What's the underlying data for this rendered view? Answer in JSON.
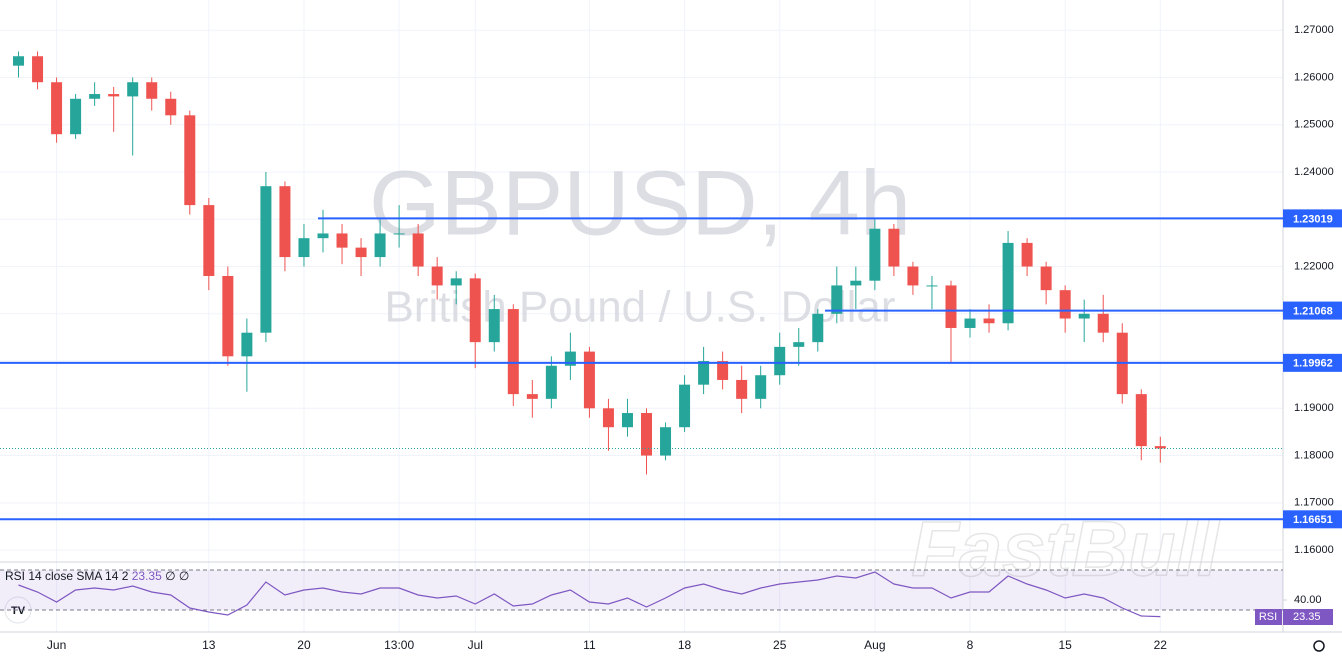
{
  "chart_data": {
    "type": "candlestick",
    "title": "GBPUSD, 4h",
    "subtitle": "British Pound / U.S. Dollar",
    "watermark": "FastBull",
    "categories": [
      null,
      null,
      "Jun",
      null,
      null,
      null,
      null,
      null,
      null,
      null,
      "13",
      null,
      null,
      null,
      null,
      "20",
      null,
      null,
      null,
      null,
      "13:00",
      null,
      null,
      null,
      "Jul",
      null,
      null,
      null,
      null,
      null,
      "11",
      null,
      null,
      null,
      null,
      "18",
      null,
      null,
      null,
      null,
      "25",
      null,
      null,
      null,
      null,
      "Aug",
      null,
      null,
      null,
      null,
      "8",
      null,
      null,
      null,
      null,
      "15",
      null,
      null,
      null,
      null,
      "22"
    ],
    "open": [
      1.2625,
      1.2645,
      1.259,
      1.248,
      1.2555,
      1.2565,
      1.256,
      1.259,
      1.2555,
      1.252,
      1.233,
      1.218,
      1.201,
      1.206,
      1.237,
      1.222,
      1.226,
      1.227,
      1.224,
      1.222,
      1.227,
      1.227,
      1.22,
      1.216,
      1.2175,
      1.204,
      1.211,
      1.193,
      1.192,
      1.199,
      1.202,
      1.19,
      1.186,
      1.189,
      1.18,
      1.186,
      1.195,
      1.2,
      1.196,
      1.192,
      1.197,
      1.203,
      1.204,
      1.21,
      1.216,
      1.217,
      1.228,
      1.22,
      1.216,
      1.216,
      1.207,
      1.209,
      1.208,
      1.225,
      1.22,
      1.215,
      1.209,
      1.21,
      1.206,
      1.193,
      1.182
    ],
    "high": [
      1.2655,
      1.2655,
      1.26,
      1.2565,
      1.259,
      1.258,
      1.26,
      1.26,
      1.257,
      1.253,
      1.2345,
      1.22,
      1.209,
      1.24,
      1.238,
      1.229,
      1.232,
      1.229,
      1.226,
      1.23,
      1.233,
      1.229,
      1.222,
      1.219,
      1.2185,
      1.214,
      1.212,
      1.196,
      1.201,
      1.206,
      1.203,
      1.192,
      1.192,
      1.19,
      1.187,
      1.197,
      1.203,
      1.202,
      1.199,
      1.199,
      1.206,
      1.207,
      1.211,
      1.22,
      1.22,
      1.23,
      1.229,
      1.221,
      1.218,
      1.217,
      1.211,
      1.212,
      1.2275,
      1.226,
      1.221,
      1.216,
      1.213,
      1.214,
      1.208,
      1.194,
      1.184
    ],
    "low": [
      1.26,
      1.2575,
      1.2462,
      1.247,
      1.254,
      1.2485,
      1.2435,
      1.253,
      1.25,
      1.231,
      1.215,
      1.199,
      1.1935,
      1.204,
      1.219,
      1.22,
      1.223,
      1.2205,
      1.218,
      1.22,
      1.224,
      1.218,
      1.213,
      1.212,
      1.1985,
      1.202,
      1.1905,
      1.188,
      1.19,
      1.196,
      1.188,
      1.181,
      1.184,
      1.176,
      1.179,
      1.185,
      1.193,
      1.194,
      1.189,
      1.19,
      1.195,
      1.199,
      1.202,
      1.208,
      1.211,
      1.215,
      1.218,
      1.214,
      1.211,
      1.1995,
      1.205,
      1.206,
      1.2065,
      1.218,
      1.212,
      1.206,
      1.204,
      1.204,
      1.191,
      1.179,
      1.1785
    ],
    "close": [
      1.2645,
      1.259,
      1.248,
      1.2555,
      1.2565,
      1.256,
      1.259,
      1.2555,
      1.252,
      1.233,
      1.218,
      1.201,
      1.206,
      1.237,
      1.222,
      1.226,
      1.227,
      1.224,
      1.222,
      1.227,
      1.227,
      1.22,
      1.216,
      1.2175,
      1.204,
      1.211,
      1.193,
      1.192,
      1.199,
      1.202,
      1.19,
      1.186,
      1.189,
      1.18,
      1.186,
      1.195,
      1.2,
      1.196,
      1.192,
      1.197,
      1.203,
      1.204,
      1.21,
      1.216,
      1.217,
      1.228,
      1.22,
      1.216,
      1.216,
      1.207,
      1.209,
      1.208,
      1.225,
      1.22,
      1.215,
      1.209,
      1.21,
      1.206,
      1.193,
      1.182,
      1.1815
    ],
    "up_color": "#26a69a",
    "down_color": "#ef5350",
    "ylim": [
      1.1579,
      1.2764
    ],
    "yticks": [
      {
        "value": 1.27,
        "label": "1.27000"
      },
      {
        "value": 1.26,
        "label": "1.26000"
      },
      {
        "value": 1.25,
        "label": "1.25000"
      },
      {
        "value": 1.24,
        "label": "1.24000"
      },
      {
        "value": 1.23,
        "label": "1.23000"
      },
      {
        "value": 1.22,
        "label": "1.22000"
      },
      {
        "value": 1.21,
        "label": "1.21000"
      },
      {
        "value": 1.2,
        "label": "1.20000"
      },
      {
        "value": 1.19,
        "label": "1.19000"
      },
      {
        "value": 1.18,
        "label": "1.18000"
      },
      {
        "value": 1.17,
        "label": "1.17000"
      },
      {
        "value": 1.16,
        "label": "1.16000"
      }
    ],
    "grid": true,
    "levels": [
      1.23019,
      1.21068,
      1.19962,
      1.16651
    ],
    "level_color": "#2962ff",
    "indicator": {
      "name": "RSI",
      "label": "RSI 14 close SMA 14 2",
      "na": "∅ ∅",
      "color": "#7e57c2",
      "values": [
        55,
        48,
        38,
        50,
        52,
        50,
        54,
        48,
        45,
        32,
        28,
        25,
        35,
        58,
        45,
        50,
        52,
        48,
        46,
        52,
        52,
        45,
        42,
        44,
        36,
        46,
        34,
        36,
        45,
        50,
        38,
        36,
        42,
        33,
        42,
        52,
        56,
        50,
        46,
        52,
        56,
        58,
        60,
        64,
        62,
        68,
        56,
        52,
        52,
        42,
        48,
        48,
        64,
        56,
        50,
        42,
        46,
        42,
        32,
        24,
        23.35
      ],
      "ylim": [
        12,
        75
      ],
      "yticks": [
        {
          "value": 40,
          "label": "40.00"
        }
      ],
      "bands": [
        30,
        70
      ]
    }
  }
}
